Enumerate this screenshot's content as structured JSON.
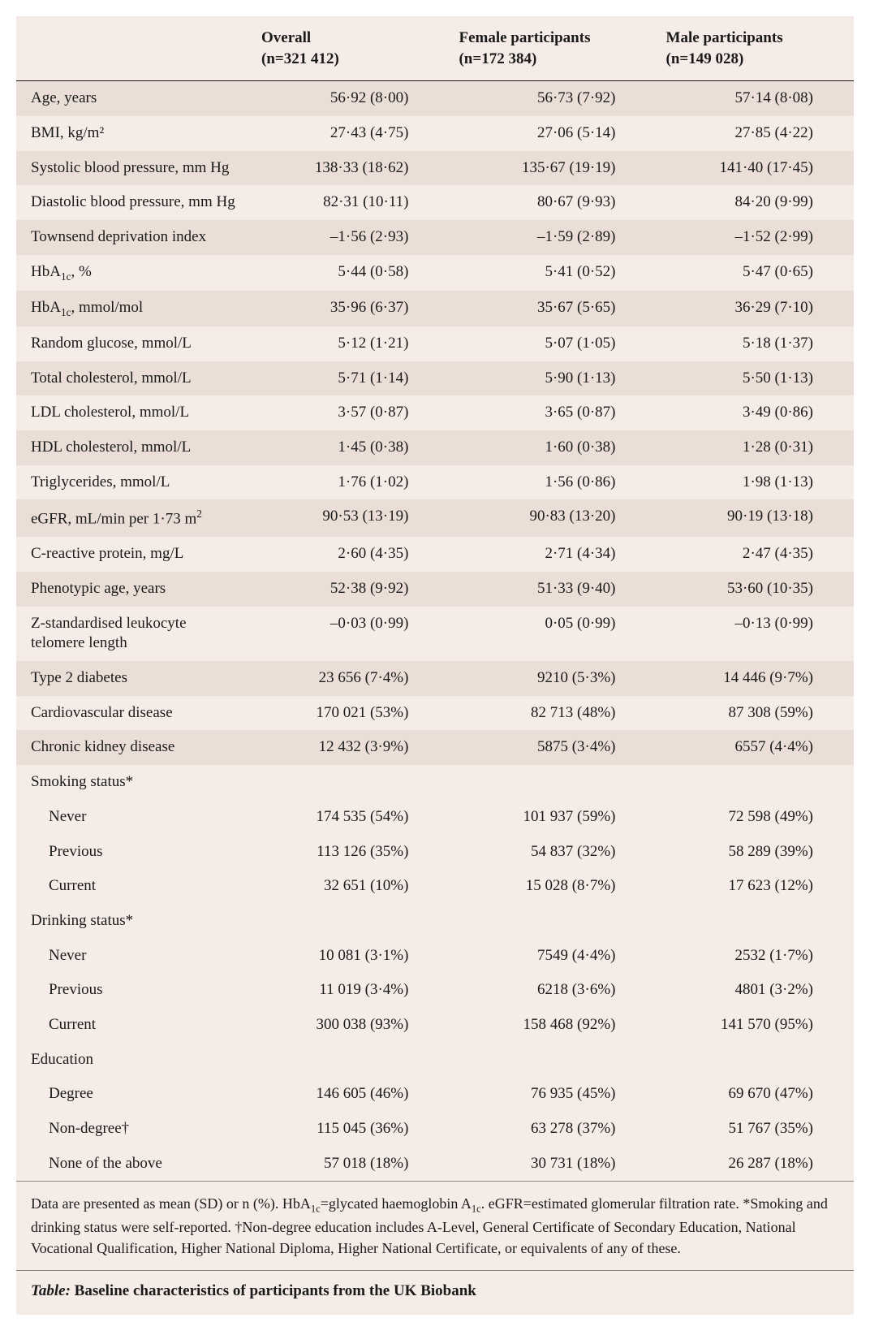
{
  "table": {
    "background_color": "#f5ece7",
    "alt_row_color": "#eaded6",
    "text_color": "#1a1a1a",
    "border_color": "#1a1a1a",
    "font_family": "Georgia, serif",
    "body_fontsize": 19,
    "footnote_fontsize": 18,
    "col_headers": {
      "overall": {
        "title": "Overall",
        "n": "(n=321 412)"
      },
      "female": {
        "title": "Female participants",
        "n": "(n=172 384)"
      },
      "male": {
        "title": "Male participants",
        "n": "(n=149 028)"
      }
    },
    "rows": [
      {
        "label": "Age, years",
        "overall": "56·92 (8·00)",
        "female": "56·73 (7·92)",
        "male": "57·14 (8·08)",
        "alt": true
      },
      {
        "label": "BMI, kg/m²",
        "overall": "27·43 (4·75)",
        "female": "27·06 (5·14)",
        "male": "27·85 (4·22)",
        "alt": false
      },
      {
        "label_html": "Systolic blood pressure, mm Hg",
        "label": "Systolic blood pressure, mm Hg",
        "overall": "138·33 (18·62)",
        "female": "135·67 (19·19)",
        "male": "141·40 (17·45)",
        "alt": true
      },
      {
        "label": "Diastolic blood pressure, mm Hg",
        "overall": "82·31 (10·11)",
        "female": "80·67 (9·93)",
        "male": "84·20 (9·99)",
        "alt": false
      },
      {
        "label": "Townsend deprivation index",
        "overall": "–1·56 (2·93)",
        "female": "–1·59 (2·89)",
        "male": "–1·52 (2·99)",
        "alt": true
      },
      {
        "label_html": "HbA<span class='sub'>1c</span>, %",
        "label": "HbA1c, %",
        "overall": "5·44 (0·58)",
        "female": "5·41 (0·52)",
        "male": "5·47 (0·65)",
        "alt": false
      },
      {
        "label_html": "HbA<span class='sub'>1c</span>, mmol/mol",
        "label": "HbA1c, mmol/mol",
        "overall": "35·96 (6·37)",
        "female": "35·67 (5·65)",
        "male": "36·29 (7·10)",
        "alt": true
      },
      {
        "label": "Random glucose, mmol/L",
        "overall": "5·12 (1·21)",
        "female": "5·07 (1·05)",
        "male": "5·18 (1·37)",
        "alt": false
      },
      {
        "label": "Total cholesterol, mmol/L",
        "overall": "5·71 (1·14)",
        "female": "5·90 (1·13)",
        "male": "5·50 (1·13)",
        "alt": true
      },
      {
        "label": "LDL cholesterol, mmol/L",
        "overall": "3·57 (0·87)",
        "female": "3·65 (0·87)",
        "male": "3·49 (0·86)",
        "alt": false
      },
      {
        "label": "HDL cholesterol, mmol/L",
        "overall": "1·45 (0·38)",
        "female": "1·60 (0·38)",
        "male": "1·28 (0·31)",
        "alt": true
      },
      {
        "label": "Triglycerides, mmol/L",
        "overall": "1·76 (1·02)",
        "female": "1·56 (0·86)",
        "male": "1·98 (1·13)",
        "alt": false
      },
      {
        "label_html": "eGFR, mL/min per 1·73 m<span class='sup'>2</span>",
        "label": "eGFR, mL/min per 1·73 m²",
        "overall": "90·53 (13·19)",
        "female": "90·83 (13·20)",
        "male": "90·19 (13·18)",
        "alt": true
      },
      {
        "label": "C-reactive protein, mg/L",
        "overall": "2·60 (4·35)",
        "female": "2·71 (4·34)",
        "male": "2·47 (4·35)",
        "alt": false
      },
      {
        "label": "Phenotypic age, years",
        "overall": "52·38 (9·92)",
        "female": "51·33 (9·40)",
        "male": "53·60 (10·35)",
        "alt": true
      },
      {
        "label": "Z-standardised leukocyte telomere length",
        "overall": "–0·03 (0·99)",
        "female": "0·05 (0·99)",
        "male": "–0·13 (0·99)",
        "alt": false
      },
      {
        "label": "Type 2 diabetes",
        "overall": "23 656 (7·4%)",
        "female": "9210 (5·3%)",
        "male": "14 446 (9·7%)",
        "alt": true
      },
      {
        "label": "Cardiovascular disease",
        "overall": "170 021 (53%)",
        "female": "82 713 (48%)",
        "male": "87 308 (59%)",
        "alt": false
      },
      {
        "label": "Chronic kidney disease",
        "overall": "12 432 (3·9%)",
        "female": "5875 (3·4%)",
        "male": "6557 (4·4%)",
        "alt": true
      },
      {
        "label": "Smoking status*",
        "section": true,
        "alt": false
      },
      {
        "label": "Never",
        "indent": true,
        "overall": "174 535 (54%)",
        "female": "101 937 (59%)",
        "male": "72 598 (49%)",
        "alt": false
      },
      {
        "label": "Previous",
        "indent": true,
        "overall": "113 126 (35%)",
        "female": "54 837 (32%)",
        "male": "58 289 (39%)",
        "alt": false
      },
      {
        "label": "Current",
        "indent": true,
        "overall": "32 651 (10%)",
        "female": "15 028 (8·7%)",
        "male": "17 623 (12%)",
        "alt": false
      },
      {
        "label": "Drinking status*",
        "section": true,
        "alt": false
      },
      {
        "label": "Never",
        "indent": true,
        "overall": "10 081 (3·1%)",
        "female": "7549 (4·4%)",
        "male": "2532 (1·7%)",
        "alt": false
      },
      {
        "label": "Previous",
        "indent": true,
        "overall": "11 019 (3·4%)",
        "female": "6218 (3·6%)",
        "male": "4801 (3·2%)",
        "alt": false
      },
      {
        "label": "Current",
        "indent": true,
        "overall": "300 038 (93%)",
        "female": "158 468 (92%)",
        "male": "141 570 (95%)",
        "alt": false
      },
      {
        "label": "Education",
        "section": true,
        "alt": false
      },
      {
        "label": "Degree",
        "indent": true,
        "overall": "146 605 (46%)",
        "female": "76 935 (45%)",
        "male": "69 670 (47%)",
        "alt": false
      },
      {
        "label": "Non-degree†",
        "indent": true,
        "overall": "115 045 (36%)",
        "female": "63 278 (37%)",
        "male": "51 767 (35%)",
        "alt": false
      },
      {
        "label": "None of the above",
        "indent": true,
        "overall": "57 018 (18%)",
        "female": "30 731 (18%)",
        "male": "26 287 (18%)",
        "alt": false
      }
    ],
    "footnotes_html": "Data are presented as mean (SD) or n (%). HbA<span class='sub'>1c</span>=glycated haemoglobin A<span class='sub'>1c</span>. eGFR=estimated glomerular filtration rate. *Smoking and drinking status were self-reported. †Non-degree education includes A-Level, General Certificate of Secondary Education, National Vocational Qualification, Higher National Diploma, Higher National Certificate, or equivalents of any of these.",
    "footnotes": "Data are presented as mean (SD) or n (%). HbA1c=glycated haemoglobin A1c. eGFR=estimated glomerular filtration rate. *Smoking and drinking status were self-reported. †Non-degree education includes A-Level, General Certificate of Secondary Education, National Vocational Qualification, Higher National Diploma, Higher National Certificate, or equivalents of any of these.",
    "caption_lead": "Table:",
    "caption_rest": " Baseline characteristics of participants from the UK Biobank"
  }
}
